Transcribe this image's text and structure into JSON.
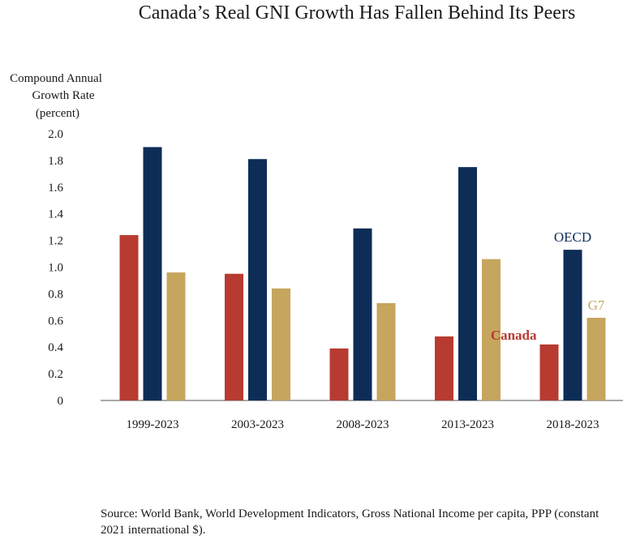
{
  "chart_data": {
    "type": "bar",
    "title": "Canada’s Real GNI Growth Has Fallen Behind Its Peers",
    "ylabel": [
      "Compound Annual",
      "Growth Rate",
      "(percent)"
    ],
    "xlabel": "",
    "ylim": [
      0,
      2.0
    ],
    "yticks": [
      0,
      0.2,
      0.4,
      0.6,
      0.8,
      1.0,
      1.2,
      1.4,
      1.6,
      1.8,
      2.0
    ],
    "ytick_labels": [
      "0",
      "0.2",
      "0.4",
      "0.6",
      "0.8",
      "1.0",
      "1.2",
      "1.4",
      "1.6",
      "1.8",
      "2.0"
    ],
    "grid": false,
    "categories": [
      "1999-2023",
      "2003-2023",
      "2008-2023",
      "2013-2023",
      "2018-2023"
    ],
    "series": [
      {
        "name": "Canada",
        "color": "#b73b31",
        "values": [
          1.24,
          0.95,
          0.39,
          0.48,
          0.42
        ]
      },
      {
        "name": "OECD",
        "color": "#0d2d57",
        "values": [
          1.9,
          1.81,
          1.29,
          1.75,
          1.13
        ]
      },
      {
        "name": "G7",
        "color": "#c6a55e",
        "values": [
          0.96,
          0.84,
          0.73,
          1.06,
          0.62
        ]
      }
    ],
    "legend": "inline labels at last category"
  },
  "source": "Source: World Bank, World Development Indicators, Gross National Income per capita, PPP (constant 2021 international $)."
}
